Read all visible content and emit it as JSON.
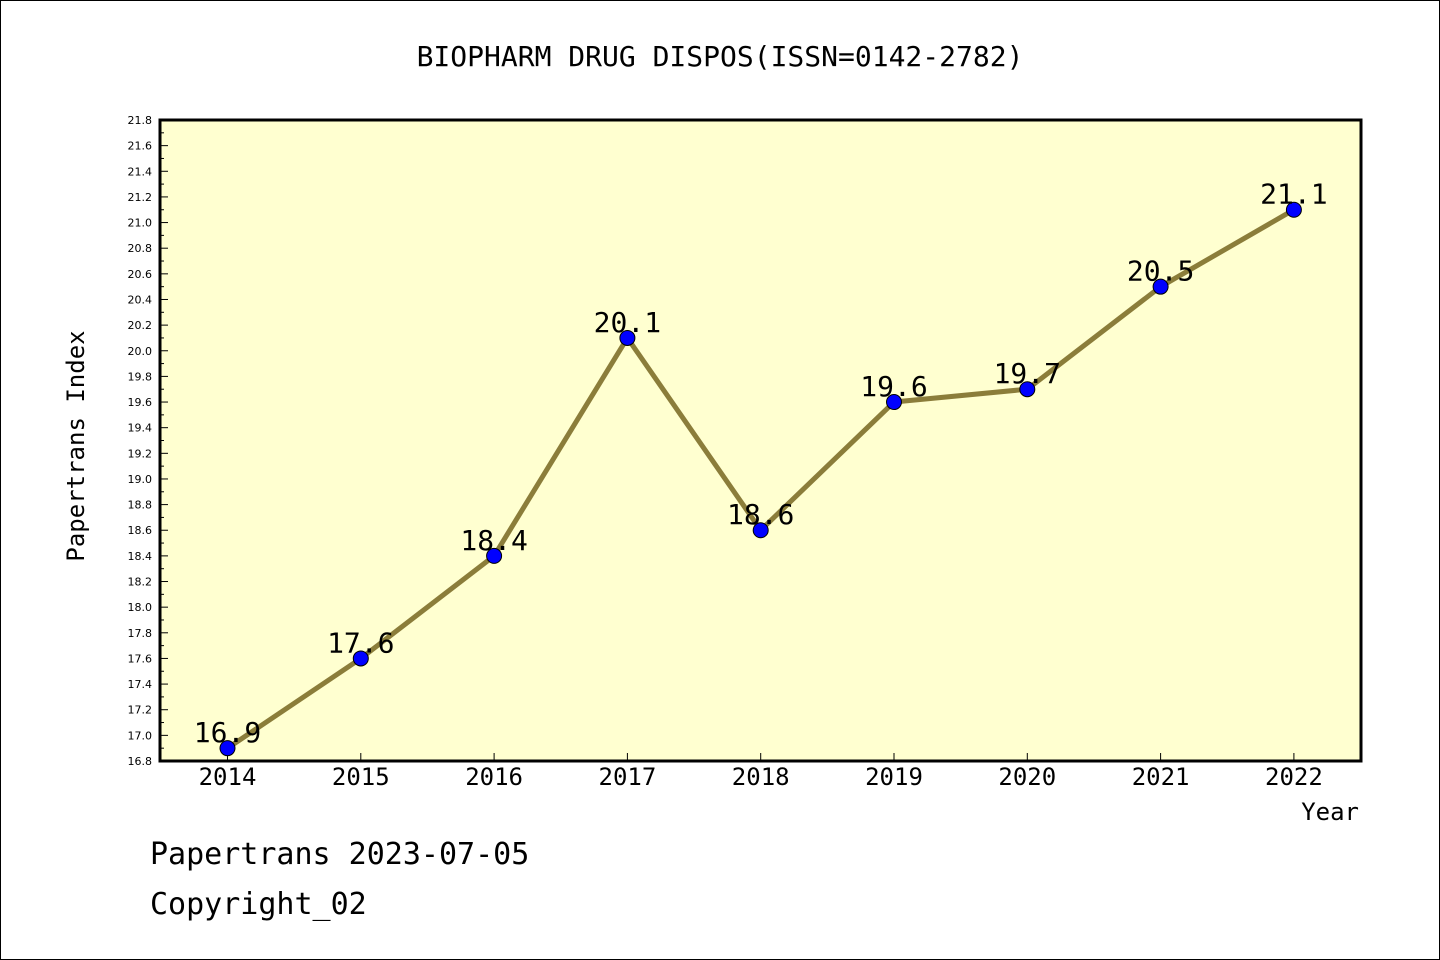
{
  "chart_data": {
    "type": "line",
    "title": "BIOPHARM DRUG DISPOS(ISSN=0142-2782)",
    "xlabel": "Year",
    "ylabel": "Papertrans Index",
    "x": [
      "2014",
      "2015",
      "2016",
      "2017",
      "2018",
      "2019",
      "2020",
      "2021",
      "2022"
    ],
    "series": [
      {
        "values": [
          16.9,
          17.6,
          18.4,
          20.1,
          18.6,
          19.6,
          19.7,
          20.5,
          21.1
        ],
        "labels": [
          "16.9",
          "17.6",
          "18.4",
          "20.1",
          "18.6",
          "19.6",
          "19.7",
          "20.5",
          "21.1"
        ]
      }
    ],
    "ylim": [
      16.8,
      21.8
    ],
    "ytick_step": 0.2,
    "grid": false,
    "colors": {
      "plot_background": "#FFFFD0",
      "line": "#8B7D3A",
      "marker": "#0000FF",
      "axes": "#000000"
    }
  },
  "footer": {
    "line1": "Papertrans 2023-07-05",
    "line2": "Copyright_02"
  }
}
